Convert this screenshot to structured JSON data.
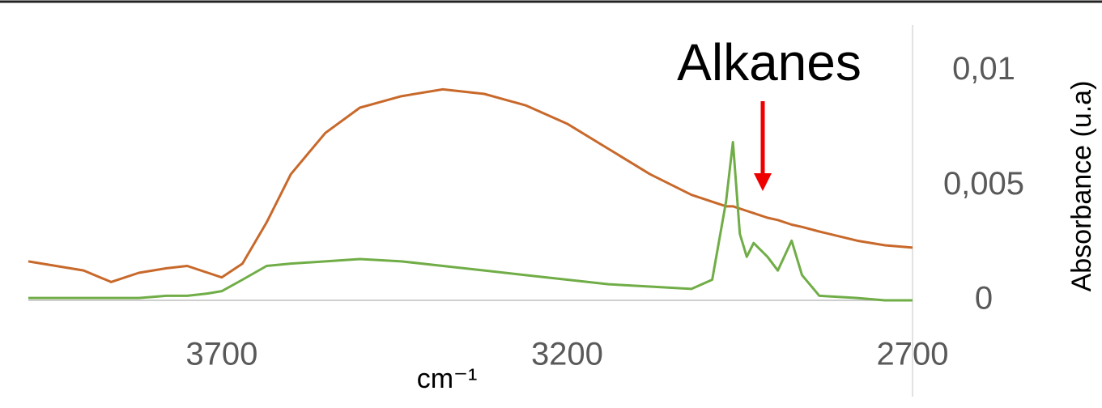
{
  "chart_data": {
    "type": "line",
    "annotation": "Alkanes",
    "x_label": "cm⁻¹",
    "y_label": "Absorbance (u.a)",
    "xlim": [
      3980,
      2700
    ],
    "xticks": [
      3700,
      3200,
      2700
    ],
    "ylim": [
      0,
      0.012
    ],
    "yticks": [
      0,
      {
        "value": 0.005,
        "label": "0,005"
      },
      {
        "value": 0.01,
        "label": "0,01"
      }
    ],
    "grid": false,
    "x": [
      3980,
      3940,
      3900,
      3860,
      3820,
      3780,
      3750,
      3720,
      3700,
      3670,
      3635,
      3600,
      3550,
      3500,
      3440,
      3380,
      3320,
      3260,
      3200,
      3140,
      3080,
      3020,
      2990,
      2970,
      2960,
      2950,
      2940,
      2930,
      2910,
      2895,
      2875,
      2860,
      2835,
      2780,
      2740,
      2700
    ],
    "series": [
      {
        "color": "#c8692b",
        "values": [
          0.0017,
          0.0015,
          0.0013,
          0.0008,
          0.0012,
          0.0014,
          0.0015,
          0.0012,
          0.001,
          0.0016,
          0.0034,
          0.0055,
          0.0073,
          0.0084,
          0.0089,
          0.0092,
          0.009,
          0.0085,
          0.0077,
          0.0066,
          0.0055,
          0.0046,
          0.0043,
          0.0041,
          0.0041,
          0.004,
          0.0039,
          0.0038,
          0.0036,
          0.0035,
          0.0033,
          0.0032,
          0.003,
          0.0026,
          0.0024,
          0.0023
        ]
      },
      {
        "color": "#70ad47",
        "values": [
          0.0001,
          0.0001,
          0.0001,
          0.0001,
          0.0001,
          0.0002,
          0.0002,
          0.0003,
          0.0004,
          0.0009,
          0.0015,
          0.0016,
          0.0017,
          0.0018,
          0.0017,
          0.0015,
          0.0013,
          0.0011,
          0.0009,
          0.0007,
          0.0006,
          0.0005,
          0.0009,
          0.0043,
          0.0069,
          0.0029,
          0.0019,
          0.0025,
          0.0019,
          0.0013,
          0.0026,
          0.0011,
          0.0002,
          0.0001,
          0.0,
          0.0
        ]
      }
    ]
  }
}
